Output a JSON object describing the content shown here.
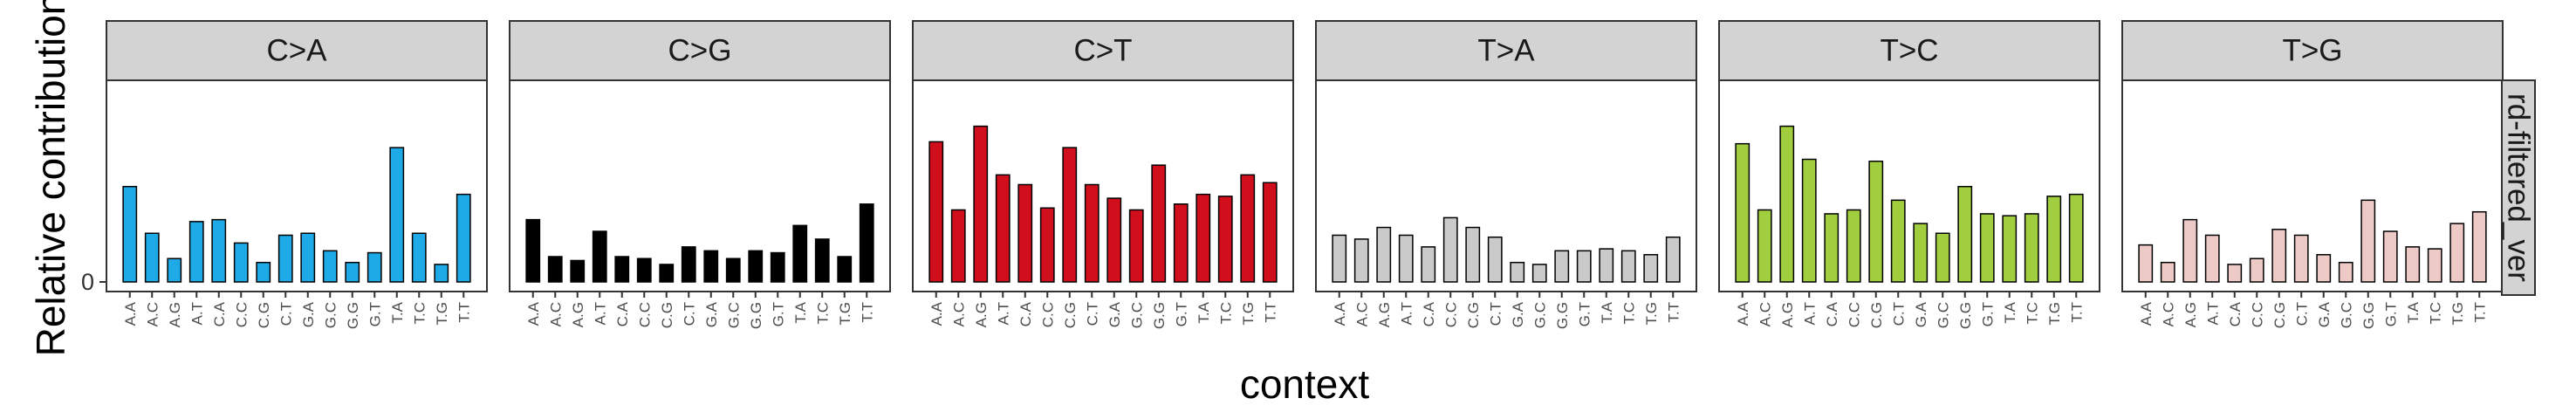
{
  "chart_data": {
    "type": "bar",
    "title": "",
    "xlabel": "context",
    "ylabel": "Relative contribution",
    "row_strip_label": "rd-filtered_ver",
    "y_ticks": [
      "0"
    ],
    "ylim": [
      0,
      0.1
    ],
    "grid": false,
    "legend": "none",
    "categories": [
      "A.A",
      "A.C",
      "A.G",
      "A.T",
      "C.A",
      "C.C",
      "C.G",
      "C.T",
      "G.A",
      "G.C",
      "G.G",
      "G.T",
      "T.A",
      "T.C",
      "T.G",
      "T.T"
    ],
    "panels": [
      {
        "name": "C>A",
        "color": "#1eaae7",
        "values": [
          0.049,
          0.025,
          0.012,
          0.031,
          0.032,
          0.02,
          0.01,
          0.024,
          0.025,
          0.016,
          0.01,
          0.015,
          0.069,
          0.025,
          0.009,
          0.045
        ]
      },
      {
        "name": "C>G",
        "color": "#000000",
        "values": [
          0.032,
          0.013,
          0.011,
          0.026,
          0.013,
          0.012,
          0.009,
          0.018,
          0.016,
          0.012,
          0.016,
          0.015,
          0.029,
          0.022,
          0.013,
          0.04
        ]
      },
      {
        "name": "C>T",
        "color": "#d10f1c",
        "values": [
          0.072,
          0.037,
          0.08,
          0.055,
          0.05,
          0.038,
          0.069,
          0.05,
          0.043,
          0.037,
          0.06,
          0.04,
          0.045,
          0.044,
          0.055,
          0.051
        ]
      },
      {
        "name": "T>A",
        "color": "#cacaca",
        "values": [
          0.024,
          0.022,
          0.028,
          0.024,
          0.018,
          0.033,
          0.028,
          0.023,
          0.01,
          0.009,
          0.016,
          0.016,
          0.017,
          0.016,
          0.014,
          0.023
        ]
      },
      {
        "name": "T>C",
        "color": "#a1ce3f",
        "values": [
          0.071,
          0.037,
          0.08,
          0.063,
          0.035,
          0.037,
          0.062,
          0.042,
          0.03,
          0.025,
          0.049,
          0.035,
          0.034,
          0.035,
          0.044,
          0.045
        ]
      },
      {
        "name": "T>G",
        "color": "#eecac7",
        "values": [
          0.019,
          0.01,
          0.032,
          0.024,
          0.009,
          0.012,
          0.027,
          0.024,
          0.014,
          0.01,
          0.042,
          0.026,
          0.018,
          0.017,
          0.03,
          0.036
        ]
      }
    ]
  }
}
